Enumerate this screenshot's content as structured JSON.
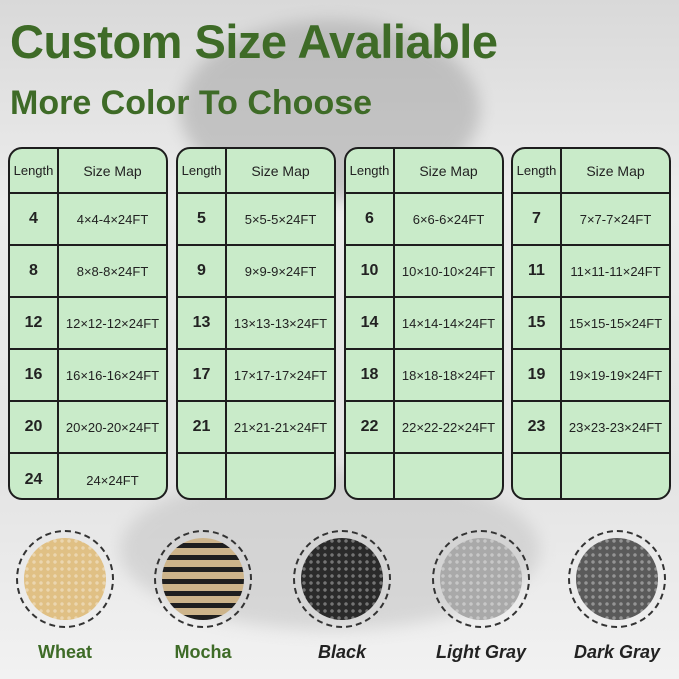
{
  "headline": "Custom Size Avaliable",
  "subheadline": "More Color To Choose",
  "table_headers": {
    "length": "Length",
    "size": "Size Map"
  },
  "tables": [
    {
      "rows": [
        [
          "4",
          "4×4-4×24FT"
        ],
        [
          "8",
          "8×8-8×24FT"
        ],
        [
          "12",
          "12×12-12×24FT"
        ],
        [
          "16",
          "16×16-16×24FT"
        ],
        [
          "20",
          "20×20-20×24FT"
        ],
        [
          "24",
          "24×24FT"
        ]
      ]
    },
    {
      "rows": [
        [
          "5",
          "5×5-5×24FT"
        ],
        [
          "9",
          "9×9-9×24FT"
        ],
        [
          "13",
          "13×13-13×24FT"
        ],
        [
          "17",
          "17×17-17×24FT"
        ],
        [
          "21",
          "21×21-21×24FT"
        ],
        [
          "",
          ""
        ]
      ]
    },
    {
      "rows": [
        [
          "6",
          "6×6-6×24FT"
        ],
        [
          "10",
          "10×10-10×24FT"
        ],
        [
          "14",
          "14×14-14×24FT"
        ],
        [
          "18",
          "18×18-18×24FT"
        ],
        [
          "22",
          "22×22-22×24FT"
        ],
        [
          "",
          ""
        ]
      ]
    },
    {
      "rows": [
        [
          "7",
          "7×7-7×24FT"
        ],
        [
          "11",
          "11×11-11×24FT"
        ],
        [
          "15",
          "15×15-15×24FT"
        ],
        [
          "19",
          "19×19-19×24FT"
        ],
        [
          "23",
          "23×23-23×24FT"
        ],
        [
          "",
          ""
        ]
      ]
    }
  ],
  "colors": [
    {
      "name": "Wheat",
      "swatch": "#e0c084"
    },
    {
      "name": "Mocha",
      "swatch": "#8a7350"
    },
    {
      "name": "Black",
      "swatch": "#2a2a2a"
    },
    {
      "name": "Light Gray",
      "swatch": "#a9a9a9"
    },
    {
      "name": "Dark Gray",
      "swatch": "#5a5a5a"
    }
  ]
}
